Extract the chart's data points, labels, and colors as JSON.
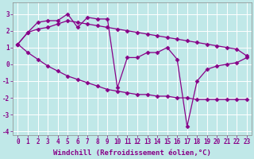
{
  "xlabel": "Windchill (Refroidissement éolien,°C)",
  "background_color": "#c0e8e8",
  "grid_color": "#ffffff",
  "line_color": "#880088",
  "xlim": [
    -0.5,
    23.5
  ],
  "ylim": [
    -4.2,
    3.7
  ],
  "yticks": [
    -4,
    -3,
    -2,
    -1,
    0,
    1,
    2,
    3
  ],
  "xticks": [
    0,
    1,
    2,
    3,
    4,
    5,
    6,
    7,
    8,
    9,
    10,
    11,
    12,
    13,
    14,
    15,
    16,
    17,
    18,
    19,
    20,
    21,
    22,
    23
  ],
  "s1_x": [
    0,
    1,
    2,
    3,
    4,
    5,
    6,
    7,
    8,
    9,
    10,
    11,
    12,
    13,
    14,
    15,
    16,
    17,
    18,
    19,
    20,
    21,
    22,
    23
  ],
  "s1_y": [
    1.2,
    0.7,
    0.3,
    -0.1,
    -0.4,
    -0.7,
    -0.9,
    -1.1,
    -1.3,
    -1.5,
    -1.6,
    -1.7,
    -1.8,
    -1.8,
    -1.9,
    -1.9,
    -2.0,
    -2.0,
    -2.1,
    -2.1,
    -2.1,
    -2.1,
    -2.1,
    -2.1
  ],
  "s2_x": [
    0,
    1,
    2,
    3,
    4,
    5,
    6,
    7,
    8,
    9,
    10,
    11,
    12,
    13,
    14,
    15,
    16,
    17,
    18,
    19,
    20,
    21,
    22,
    23
  ],
  "s2_y": [
    1.2,
    1.9,
    2.1,
    2.2,
    2.4,
    2.6,
    2.5,
    2.4,
    2.3,
    2.2,
    2.1,
    2.0,
    1.9,
    1.8,
    1.7,
    1.6,
    1.5,
    1.4,
    1.3,
    1.2,
    1.1,
    1.0,
    0.9,
    0.5
  ],
  "s3_x": [
    0,
    1,
    2,
    3,
    4,
    5,
    6,
    7,
    8,
    9,
    10,
    11,
    12,
    13,
    14,
    15,
    16,
    17,
    18,
    19,
    20,
    21,
    22,
    23
  ],
  "s3_y": [
    1.2,
    1.9,
    2.5,
    2.6,
    2.6,
    3.0,
    2.2,
    2.8,
    2.7,
    2.7,
    -1.4,
    0.4,
    0.4,
    0.7,
    0.7,
    1.0,
    0.3,
    -3.7,
    -1.0,
    -0.3,
    -0.1,
    0.0,
    0.1,
    0.4
  ],
  "marker": "D",
  "marker_size": 2.5,
  "linewidth": 0.9,
  "xlabel_fontsize": 6.5,
  "tick_fontsize": 5.5
}
